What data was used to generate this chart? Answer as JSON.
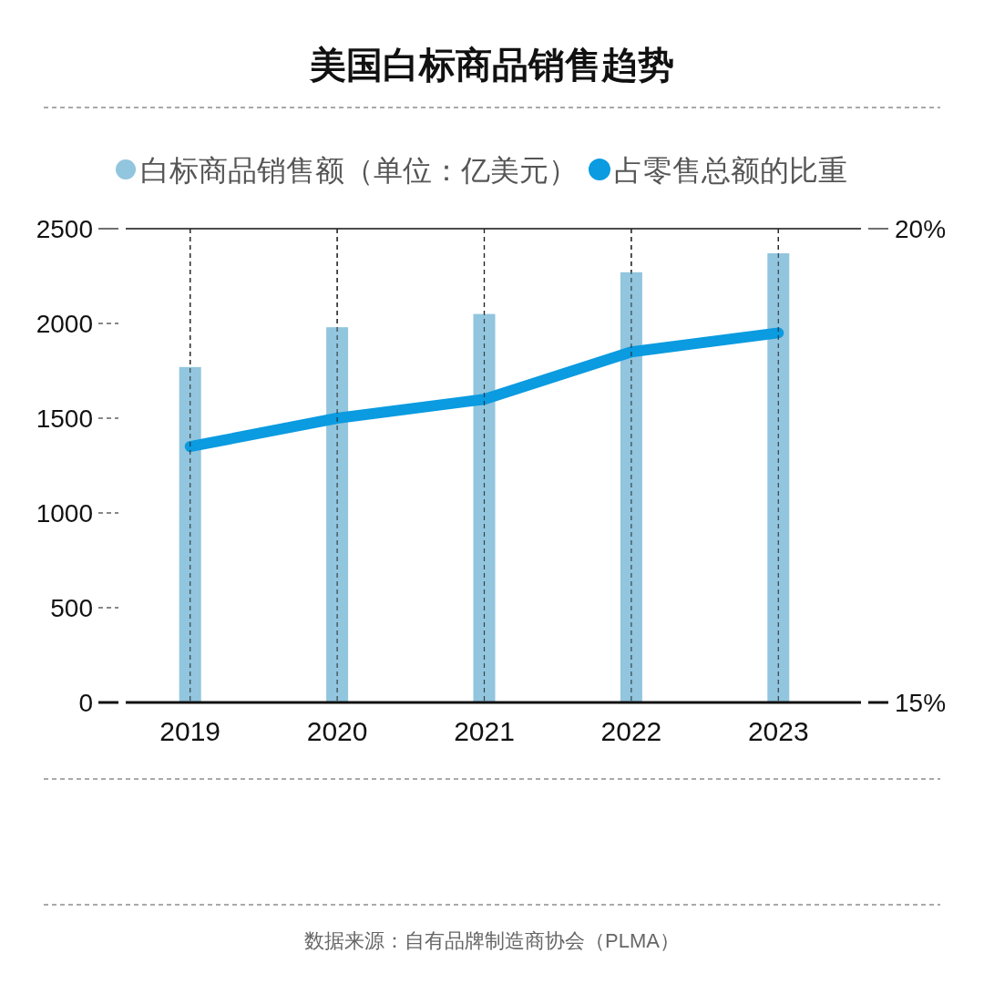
{
  "chart_data": {
    "type": "bar",
    "title": "美国白标商品销售趋势",
    "categories": [
      "2019",
      "2020",
      "2021",
      "2022",
      "2023"
    ],
    "series": [
      {
        "name": "白标商品销售额（单位：亿美元）",
        "color": "#92c5de",
        "values": [
          1770,
          1980,
          2050,
          2270,
          2370
        ]
      },
      {
        "name": "占零售总额的比重",
        "type": "line",
        "axis": "y2",
        "color": "#0a9be0",
        "values": [
          17.7,
          18.0,
          18.2,
          18.7,
          18.9
        ]
      }
    ],
    "ylim": [
      0,
      2500
    ],
    "yticks": [
      0,
      500,
      1000,
      1500,
      2000,
      2500
    ],
    "y2lim": [
      15,
      20
    ],
    "y2ticks": [
      {
        "value": 15,
        "label": "15%"
      },
      {
        "value": 20,
        "label": "20%"
      }
    ],
    "grid": "x",
    "legend": "top",
    "marker": "none",
    "line_style": "solid",
    "annotations": [
      "数据来源：自有品牌制造商协会（PLMA）"
    ]
  }
}
